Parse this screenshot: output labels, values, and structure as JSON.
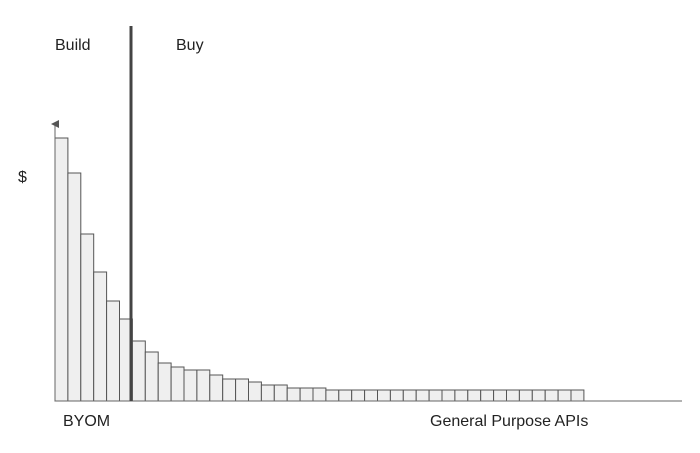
{
  "chart_data": {
    "type": "bar",
    "y_label": "$",
    "annotations": {
      "left_top": "Build",
      "right_top": "Buy",
      "left_bottom": "BYOM",
      "right_bottom": "General Purpose APIs"
    },
    "categories": [
      null,
      null,
      null,
      null,
      null,
      null,
      null,
      null,
      null,
      null,
      null,
      null,
      null,
      null,
      null,
      null,
      null,
      null,
      null,
      null,
      null,
      null,
      null,
      null,
      null,
      null,
      null,
      null,
      null,
      null,
      null,
      null,
      null,
      null,
      null,
      null,
      null,
      null,
      null,
      null,
      null
    ],
    "values": [
      263,
      228,
      167,
      129,
      100,
      82,
      60,
      49,
      38,
      34,
      31,
      31,
      26,
      22,
      22,
      19,
      16,
      16,
      13,
      13,
      13,
      11,
      11,
      11,
      11,
      11,
      11,
      11,
      11,
      11,
      11,
      11,
      11,
      11,
      11,
      11,
      11,
      11,
      11,
      11,
      11
    ],
    "color": "#efefef",
    "edge_color": "#555555",
    "ylim": [
      0,
      279
    ]
  }
}
